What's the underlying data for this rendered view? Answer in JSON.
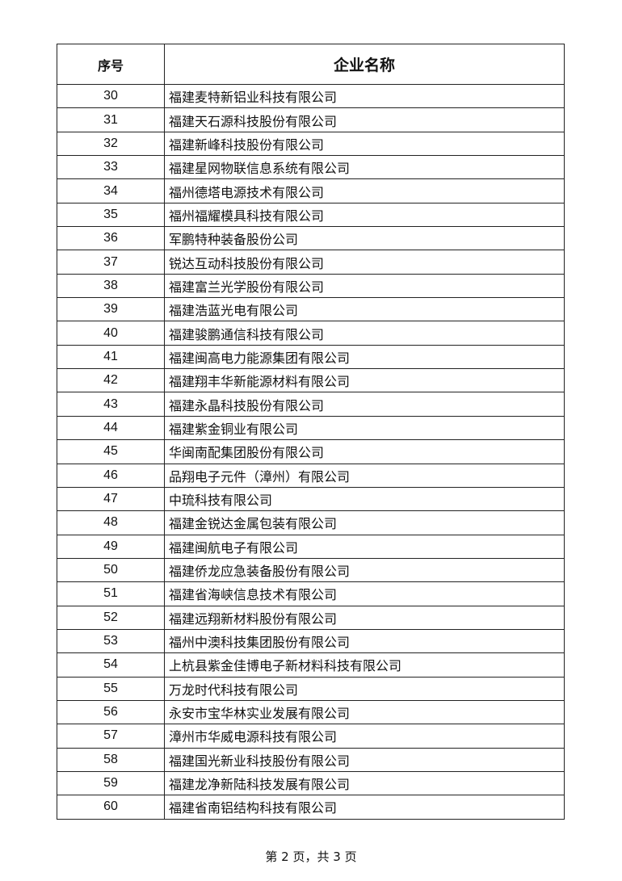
{
  "table": {
    "headers": [
      "序号",
      "企业名称"
    ],
    "rows": [
      [
        "30",
        "福建麦特新铝业科技有限公司"
      ],
      [
        "31",
        "福建天石源科技股份有限公司"
      ],
      [
        "32",
        "福建新峰科技股份有限公司"
      ],
      [
        "33",
        "福建星网物联信息系统有限公司"
      ],
      [
        "34",
        "福州德塔电源技术有限公司"
      ],
      [
        "35",
        "福州福耀模具科技有限公司"
      ],
      [
        "36",
        "军鹏特种装备股份公司"
      ],
      [
        "37",
        "锐达互动科技股份有限公司"
      ],
      [
        "38",
        "福建富兰光学股份有限公司"
      ],
      [
        "39",
        "福建浩蓝光电有限公司"
      ],
      [
        "40",
        "福建骏鹏通信科技有限公司"
      ],
      [
        "41",
        "福建闽高电力能源集团有限公司"
      ],
      [
        "42",
        "福建翔丰华新能源材料有限公司"
      ],
      [
        "43",
        "福建永晶科技股份有限公司"
      ],
      [
        "44",
        "福建紫金铜业有限公司"
      ],
      [
        "45",
        "华闽南配集团股份有限公司"
      ],
      [
        "46",
        "品翔电子元件（漳州）有限公司"
      ],
      [
        "47",
        "中琉科技有限公司"
      ],
      [
        "48",
        "福建金锐达金属包装有限公司"
      ],
      [
        "49",
        "福建闽航电子有限公司"
      ],
      [
        "50",
        "福建侨龙应急装备股份有限公司"
      ],
      [
        "51",
        "福建省海峡信息技术有限公司"
      ],
      [
        "52",
        "福建远翔新材料股份有限公司"
      ],
      [
        "53",
        "福州中澳科技集团股份有限公司"
      ],
      [
        "54",
        "上杭县紫金佳博电子新材料科技有限公司"
      ],
      [
        "55",
        "万龙时代科技有限公司"
      ],
      [
        "56",
        "永安市宝华林实业发展有限公司"
      ],
      [
        "57",
        "漳州市华威电源科技有限公司"
      ],
      [
        "58",
        "福建国光新业科技股份有限公司"
      ],
      [
        "59",
        "福建龙净新陆科技发展有限公司"
      ],
      [
        "60",
        "福建省南铝结构科技有限公司"
      ]
    ]
  },
  "footer": {
    "page_label": "第 2 页，共 3 页"
  }
}
